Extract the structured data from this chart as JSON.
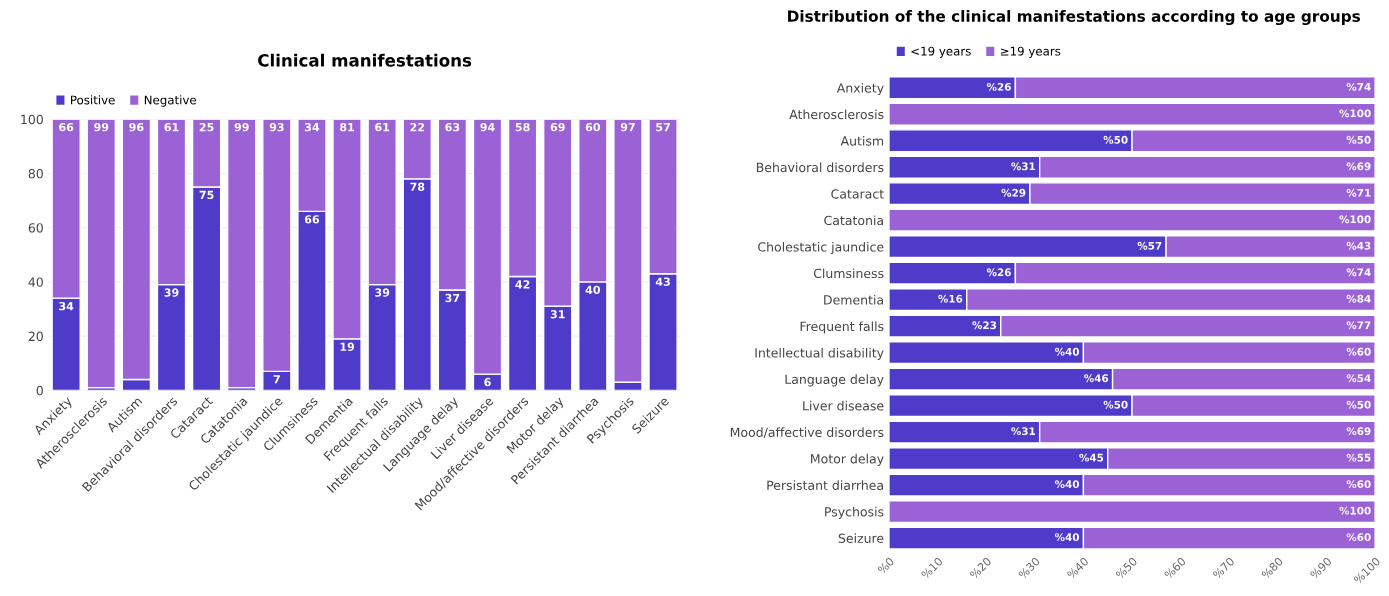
{
  "chart_data": [
    {
      "type": "bar",
      "title": "Clinical manifestations",
      "stacked": true,
      "legend": "top left",
      "grid": "y",
      "categories": [
        "Anxiety",
        "Atherosclerosis",
        "Autism",
        "Behavioral disorders",
        "Cataract",
        "Catatonia",
        "Cholestatic jaundice",
        "Clumsiness",
        "Dementia",
        "Frequent falls",
        "Intellectual disability",
        "Language delay",
        "Liver disease",
        "Mood/affective disorders",
        "Motor delay",
        "Persistant diarrhea",
        "Psychosis",
        "Seizure"
      ],
      "ylim": [
        0,
        100
      ],
      "yticks": [
        0,
        20,
        40,
        60,
        80,
        100
      ],
      "series": [
        {
          "name": "Positive",
          "color": "#4f3bc9",
          "values": [
            34,
            1,
            4,
            39,
            75,
            1,
            7,
            66,
            19,
            39,
            78,
            37,
            6,
            42,
            31,
            40,
            3,
            43
          ],
          "value_labels": [
            "34",
            null,
            null,
            "39",
            "75",
            null,
            "7",
            "66",
            "19",
            "39",
            "78",
            "37",
            "6",
            "42",
            "31",
            "40",
            null,
            "43"
          ]
        },
        {
          "name": "Negative",
          "color": "#9b62d6",
          "values": [
            66,
            99,
            96,
            61,
            25,
            99,
            93,
            34,
            81,
            61,
            22,
            63,
            94,
            58,
            69,
            60,
            97,
            57
          ],
          "value_labels": [
            "66",
            "99",
            "96",
            "61",
            "25",
            "99",
            "93",
            "34",
            "81",
            "61",
            "22",
            "63",
            "94",
            "58",
            "69",
            "60",
            "97",
            "57"
          ]
        }
      ]
    },
    {
      "type": "bar",
      "title": "Distribution of the clinical manifestations according to age groups",
      "stacked": true,
      "orientation": "horizontal",
      "legend": "top left",
      "categories": [
        "Anxiety",
        "Atherosclerosis",
        "Autism",
        "Behavioral disorders",
        "Cataract",
        "Catatonia",
        "Cholestatic jaundice",
        "Clumsiness",
        "Dementia",
        "Frequent falls",
        "Intellectual disability",
        "Language delay",
        "Liver disease",
        "Mood/affective disorders",
        "Motor delay",
        "Persistant diarrhea",
        "Psychosis",
        "Seizure"
      ],
      "xlim": [
        0,
        100
      ],
      "xticks": [
        {
          "value": 0,
          "label": "%0"
        },
        {
          "value": 10,
          "label": "%10"
        },
        {
          "value": 20,
          "label": "%20"
        },
        {
          "value": 30,
          "label": "%30"
        },
        {
          "value": 40,
          "label": "%40"
        },
        {
          "value": 50,
          "label": "%50"
        },
        {
          "value": 60,
          "label": "%60"
        },
        {
          "value": 70,
          "label": "%70"
        },
        {
          "value": 80,
          "label": "%80"
        },
        {
          "value": 90,
          "label": "%90"
        },
        {
          "value": 100,
          "label": "%100"
        }
      ],
      "series": [
        {
          "name": "<19 years",
          "color": "#4f3bc9",
          "values": [
            26,
            0,
            50,
            31,
            29,
            0,
            57,
            26,
            16,
            23,
            40,
            46,
            50,
            31,
            45,
            40,
            0,
            40
          ],
          "value_labels": [
            "%26",
            null,
            "%50",
            "%31",
            "%29",
            null,
            "%57",
            "%26",
            "%16",
            "%23",
            "%40",
            "%46",
            "%50",
            "%31",
            "%45",
            "%40",
            null,
            "%40"
          ]
        },
        {
          "name": "≥19 years",
          "color": "#9b62d6",
          "values": [
            74,
            100,
            50,
            69,
            71,
            100,
            43,
            74,
            84,
            77,
            60,
            54,
            50,
            69,
            55,
            60,
            100,
            60
          ],
          "value_labels": [
            "%74",
            "%100",
            "%50",
            "%69",
            "%71",
            "%100",
            "%43",
            "%74",
            "%84",
            "%77",
            "%60",
            "%54",
            "%50",
            "%69",
            "%55",
            "%60",
            "%100",
            "%60"
          ]
        }
      ]
    }
  ]
}
